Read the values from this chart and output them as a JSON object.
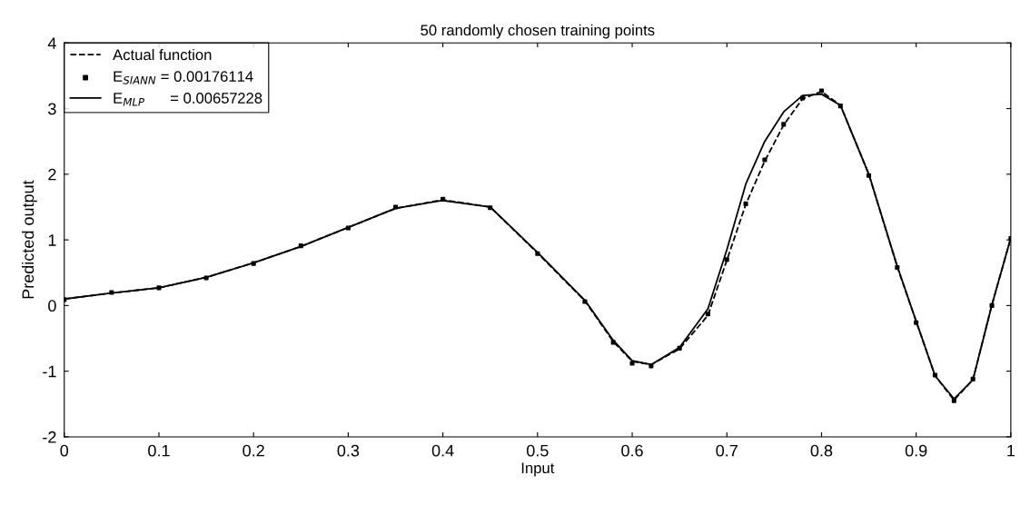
{
  "chart_data": {
    "type": "line",
    "title": "50 randomly chosen training points",
    "xlabel": "Input",
    "ylabel": "Predicted output",
    "xlim": [
      0,
      1
    ],
    "ylim": [
      -2,
      4
    ],
    "xticks": [
      0,
      0.1,
      0.2,
      0.3,
      0.4,
      0.5,
      0.6,
      0.7,
      0.8,
      0.9,
      1
    ],
    "yticks": [
      -2,
      -1,
      0,
      1,
      2,
      3,
      4
    ],
    "grid": false,
    "legend": "top left",
    "x": [
      0,
      0.05,
      0.1,
      0.15,
      0.2,
      0.25,
      0.3,
      0.35,
      0.4,
      0.45,
      0.5,
      0.55,
      0.58,
      0.6,
      0.62,
      0.65,
      0.68,
      0.7,
      0.72,
      0.74,
      0.76,
      0.78,
      0.8,
      0.82,
      0.85,
      0.88,
      0.9,
      0.92,
      0.94,
      0.96,
      0.98,
      1
    ],
    "series": [
      {
        "name": "Actual function",
        "line_style": "dashed",
        "marker": "none",
        "color": "#000000",
        "values": [
          0.1,
          0.19,
          0.27,
          0.43,
          0.65,
          0.9,
          1.19,
          1.48,
          1.61,
          1.5,
          0.8,
          0.07,
          -0.55,
          -0.85,
          -0.9,
          -0.66,
          -0.15,
          0.69,
          1.54,
          2.2,
          2.75,
          3.15,
          3.26,
          3.05,
          2.0,
          0.59,
          -0.24,
          -1.07,
          -1.44,
          -1.13,
          0.01,
          1.03
        ]
      },
      {
        "name": "E$_{SIANN}$ = 0.00176114",
        "type": "scatter",
        "marker": "square",
        "color": "#000000",
        "values": [
          0.09,
          0.2,
          0.27,
          0.42,
          0.64,
          0.91,
          1.18,
          1.5,
          1.62,
          1.49,
          0.79,
          0.06,
          -0.56,
          -0.88,
          -0.92,
          -0.65,
          -0.13,
          0.7,
          1.55,
          2.22,
          2.76,
          3.16,
          3.27,
          3.04,
          1.98,
          0.58,
          -0.26,
          -1.06,
          -1.45,
          -1.12,
          0.0,
          1.02
        ]
      },
      {
        "name": "E$_{MLP}$      = 0.00657228",
        "line_style": "solid",
        "marker": "none",
        "color": "#000000",
        "values": [
          0.1,
          0.19,
          0.27,
          0.43,
          0.65,
          0.9,
          1.19,
          1.48,
          1.6,
          1.5,
          0.81,
          0.08,
          -0.53,
          -0.84,
          -0.9,
          -0.64,
          -0.05,
          0.85,
          1.85,
          2.5,
          2.95,
          3.2,
          3.22,
          3.05,
          2.0,
          0.6,
          -0.24,
          -1.07,
          -1.42,
          -1.13,
          0.01,
          1.03
        ]
      }
    ]
  }
}
